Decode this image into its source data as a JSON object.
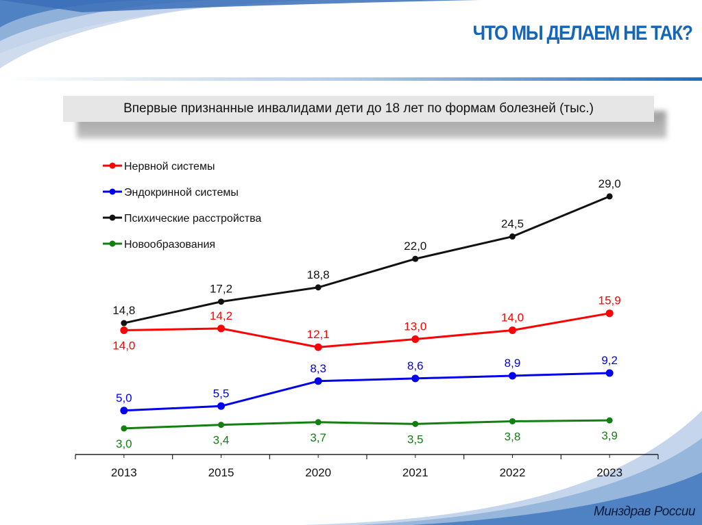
{
  "header": {
    "title": "ЧТО МЫ ДЕЛАЕМ НЕ ТАК?"
  },
  "footer": {
    "brand": "Минздрав России"
  },
  "colors": {
    "accent": "#1565b8",
    "nervous": "#ff0000",
    "endocrine": "#0000ee",
    "mental": "#111111",
    "neoplasm": "#118011"
  },
  "chart_data": {
    "type": "line",
    "title": "Впервые признанные инвалидами дети до 18 лет по формам болезней (тыс.)",
    "xlabel": "",
    "ylabel": "",
    "categories": [
      "2013",
      "2015",
      "2020",
      "2021",
      "2022",
      "2023"
    ],
    "ylim": [
      0,
      32
    ],
    "grid": false,
    "legend_position": "top-left",
    "series": [
      {
        "name": "Нервной системы",
        "color": "#ff0000",
        "values": [
          14.0,
          14.2,
          12.1,
          13.0,
          14.0,
          15.9
        ],
        "labels": [
          "14,0",
          "14,2",
          "12,1",
          "13,0",
          "14,0",
          "15,9"
        ],
        "label_pos": [
          "below",
          "above",
          "above",
          "above",
          "above",
          "above"
        ]
      },
      {
        "name": "Эндокринной системы",
        "color": "#0000ee",
        "values": [
          5.0,
          5.5,
          8.3,
          8.6,
          8.9,
          9.2
        ],
        "labels": [
          "5,0",
          "5,5",
          "8,3",
          "8,6",
          "8,9",
          "9,2"
        ],
        "label_pos": [
          "above",
          "above",
          "above",
          "above",
          "above",
          "above"
        ]
      },
      {
        "name": "Психические расстройства",
        "color": "#111111",
        "values": [
          14.8,
          17.2,
          18.8,
          22.0,
          24.5,
          29.0
        ],
        "labels": [
          "14,8",
          "17,2",
          "18,8",
          "22,0",
          "24,5",
          "29,0"
        ],
        "label_pos": [
          "above",
          "above",
          "above",
          "above",
          "above",
          "above"
        ]
      },
      {
        "name": "Новообразования",
        "color": "#118011",
        "values": [
          3.0,
          3.4,
          3.7,
          3.5,
          3.8,
          3.9
        ],
        "labels": [
          "3,0",
          "3,4",
          "3,7",
          "3,5",
          "3,8",
          "3,9"
        ],
        "label_pos": [
          "below",
          "below",
          "below",
          "below",
          "below",
          "below"
        ]
      }
    ]
  }
}
